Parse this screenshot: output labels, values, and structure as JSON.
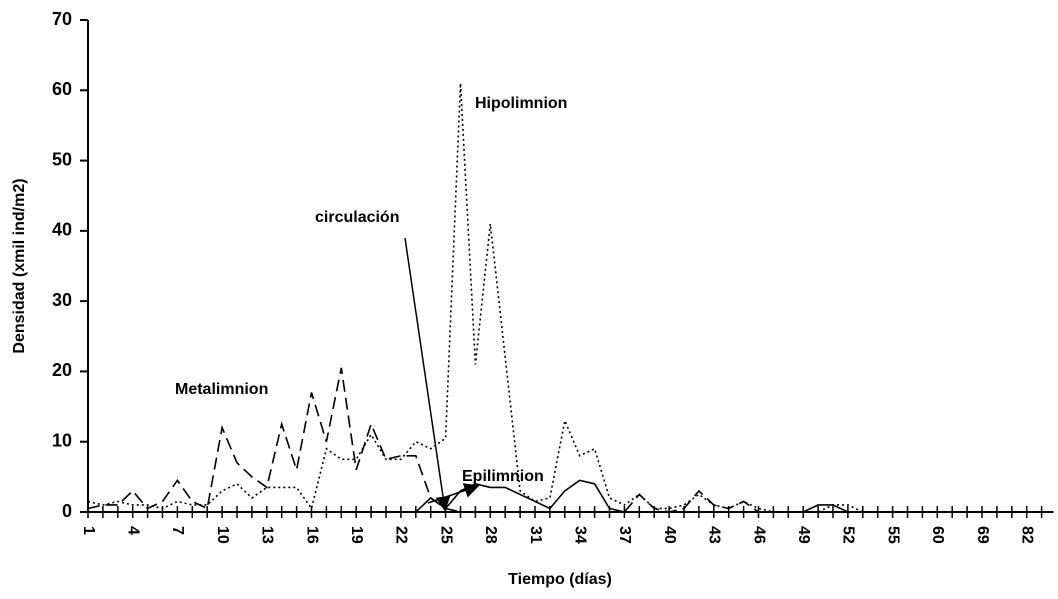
{
  "chart_data": {
    "type": "line",
    "y_label": "Densidad (xmil ind/m2)",
    "x_label": "Tiempo (días)",
    "categories": [
      "1",
      null,
      null,
      "4",
      null,
      null,
      "7",
      null,
      null,
      "10",
      null,
      null,
      "13",
      null,
      null,
      "16",
      null,
      null,
      "19",
      null,
      null,
      "22",
      null,
      null,
      "25",
      null,
      null,
      "28",
      null,
      null,
      "31",
      null,
      null,
      "34",
      null,
      null,
      "37",
      null,
      null,
      "40",
      null,
      null,
      "43",
      null,
      null,
      "46",
      null,
      null,
      "49",
      null,
      null,
      "52",
      null,
      null,
      "55",
      null,
      null,
      "60",
      null,
      null,
      "69",
      null,
      null,
      "82",
      null
    ],
    "series": [
      {
        "name": "Metalimnion",
        "color": "#000000",
        "dash": "dashed",
        "values": [
          0.5,
          1,
          1,
          3,
          0.5,
          1.5,
          4.5,
          1.5,
          0.5,
          12,
          7,
          5,
          3.5,
          12.5,
          6,
          17,
          10,
          20.5,
          6,
          12.5,
          7.5,
          8,
          8,
          2,
          0.5,
          0,
          0,
          0,
          0,
          0,
          0,
          0,
          0,
          0,
          0,
          0,
          0,
          2.5,
          0.5,
          0,
          0.5,
          3,
          1,
          0.5,
          1.5,
          0,
          0,
          0,
          0,
          0,
          0,
          0,
          0,
          0,
          0,
          0,
          0,
          0,
          0,
          0,
          0,
          0,
          0,
          0,
          0
        ]
      },
      {
        "name": "Hipolimnion",
        "color": "#000000",
        "dash": "dotted",
        "values": [
          1.5,
          1,
          1.5,
          1,
          1,
          0.5,
          1.5,
          1,
          1,
          3,
          4,
          2,
          3.5,
          3.5,
          3.5,
          0.5,
          9,
          7.5,
          7.5,
          11,
          7.5,
          7.5,
          10,
          9,
          10.5,
          61,
          21,
          41,
          22,
          3,
          1.5,
          2,
          13,
          8,
          9,
          2,
          1,
          2.5,
          0.5,
          0.5,
          1,
          2.5,
          1,
          0.5,
          1.5,
          0.5,
          0,
          0,
          0,
          0,
          1,
          1,
          0,
          0,
          0,
          0,
          0,
          0,
          0,
          0,
          0,
          0,
          0,
          0,
          0
        ]
      },
      {
        "name": "Epilimnion",
        "color": "#000000",
        "dash": "solid",
        "values": [
          0,
          0,
          0,
          0,
          0,
          0,
          0,
          0,
          0,
          0,
          0,
          0,
          0,
          0,
          0,
          0,
          0,
          0,
          0,
          0,
          0,
          0,
          0,
          2,
          0.5,
          3,
          4,
          3.5,
          3.5,
          2.5,
          1.5,
          0.5,
          3,
          4.5,
          4,
          0.5,
          0,
          0,
          0,
          0,
          0,
          0,
          0,
          0,
          0,
          0,
          0,
          0,
          0,
          1,
          1,
          0,
          0,
          0,
          0,
          0,
          0,
          0,
          0,
          0,
          0,
          0,
          0,
          0,
          0
        ]
      }
    ],
    "annotation": "circulación",
    "ylim": [
      0,
      70
    ],
    "yticks": [
      0,
      10,
      20,
      30,
      40,
      50,
      60,
      70
    ],
    "grid": false
  }
}
